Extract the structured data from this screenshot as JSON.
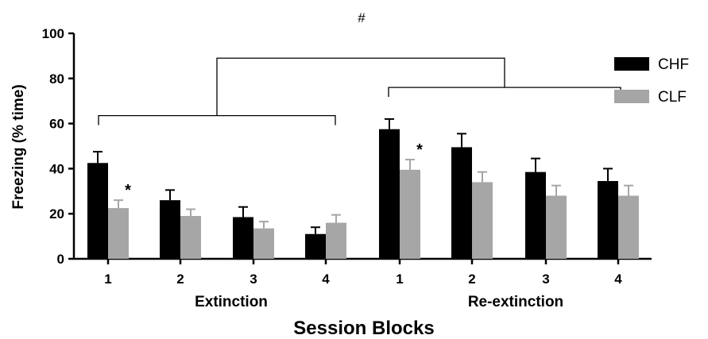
{
  "chart_data": {
    "type": "bar",
    "title": "",
    "ylabel": "Freezing (% time)",
    "xlabel": "Session Blocks",
    "ylim": [
      0,
      100
    ],
    "yticks": [
      0,
      20,
      40,
      60,
      80,
      100
    ],
    "categories": [
      "1",
      "2",
      "3",
      "4",
      "1",
      "2",
      "3",
      "4"
    ],
    "groups": [
      {
        "label": "Extinction",
        "category_indices": [
          0,
          1,
          2,
          3
        ]
      },
      {
        "label": "Re-extinction",
        "category_indices": [
          4,
          5,
          6,
          7
        ]
      }
    ],
    "series": [
      {
        "name": "CHF",
        "color": "#000000",
        "values": [
          42.5,
          26,
          18.5,
          11,
          57.5,
          49.5,
          38.5,
          34.5
        ],
        "errors": [
          5,
          4.5,
          4.5,
          3,
          4.5,
          6,
          6,
          5.5
        ]
      },
      {
        "name": "CLF",
        "color": "#a6a6a6",
        "values": [
          22.5,
          19,
          13.5,
          16,
          39.5,
          34,
          28,
          28
        ],
        "errors": [
          3.5,
          3,
          3,
          3.5,
          4.5,
          4.5,
          4.5,
          4.5
        ]
      }
    ],
    "legend_position": "top-right",
    "grid": false,
    "annotations": {
      "significance": [
        {
          "text": "*",
          "category_index": 0,
          "series": "CLF"
        },
        {
          "text": "*",
          "category_index": 4,
          "series": "CLF"
        }
      ],
      "group_comparison": {
        "text": "#"
      }
    }
  }
}
